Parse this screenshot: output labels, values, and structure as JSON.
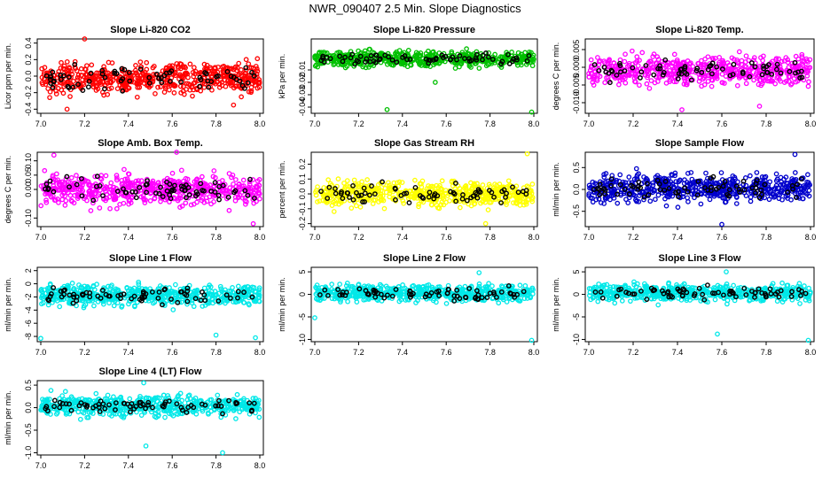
{
  "figure_title": "NWR_090407  2.5 Min. Slope Diagnostics",
  "chart_data": [
    {
      "type": "scatter",
      "title": "Slope Li-820 CO2",
      "ylabel": "Licor ppm per min.",
      "xlim": [
        7.0,
        8.0
      ],
      "ylim": [
        -0.45,
        0.45
      ],
      "xticks": [
        "7.0",
        "7.2",
        "7.4",
        "7.6",
        "7.8",
        "8.0"
      ],
      "yticks": [
        {
          "v": -0.4,
          "l": "-0.4"
        },
        {
          "v": -0.2,
          "l": "-0.2"
        },
        {
          "v": 0.0,
          "l": "0.0"
        },
        {
          "v": 0.2,
          "l": "0.2"
        },
        {
          "v": 0.4,
          "l": "0.4"
        }
      ],
      "color": "#ff0000",
      "highlight_color": "#000000",
      "band": [
        -0.35,
        0.3
      ],
      "outliers": [
        [
          7.2,
          0.45
        ],
        [
          7.12,
          -0.4
        ],
        [
          7.88,
          -0.35
        ]
      ],
      "seed": 1
    },
    {
      "type": "scatter",
      "title": "Slope Li-820 Pressure",
      "ylabel": "kPa per min.",
      "xlim": [
        7.0,
        8.0
      ],
      "ylim": [
        -0.045,
        0.015
      ],
      "xticks": [
        "7.0",
        "7.2",
        "7.4",
        "7.6",
        "7.8",
        "8.0"
      ],
      "yticks": [
        {
          "v": -0.04,
          "l": "-0.04"
        },
        {
          "v": -0.03,
          "l": "-0.03"
        },
        {
          "v": -0.02,
          "l": "-0.02"
        },
        {
          "v": -0.01,
          "l": "-0.01"
        }
      ],
      "color": "#00c000",
      "highlight_color": "#000000",
      "band": [
        -0.012,
        0.01
      ],
      "outliers": [
        [
          7.33,
          -0.042
        ],
        [
          7.55,
          -0.02
        ],
        [
          7.99,
          -0.044
        ]
      ],
      "seed": 2
    },
    {
      "type": "scatter",
      "title": "Slope Li-820 Temp.",
      "ylabel": "degrees C per min.",
      "xlim": [
        7.0,
        8.0
      ],
      "ylim": [
        -0.013,
        0.008
      ],
      "xticks": [
        "7.0",
        "7.2",
        "7.4",
        "7.6",
        "7.8",
        "8.0"
      ],
      "yticks": [
        {
          "v": -0.01,
          "l": "-0.010"
        },
        {
          "v": -0.005,
          "l": "-0.005"
        },
        {
          "v": 0.0,
          "l": "0.000"
        },
        {
          "v": 0.005,
          "l": "0.005"
        }
      ],
      "color": "#ff00ff",
      "highlight_color": "#000000",
      "band": [
        -0.008,
        0.006
      ],
      "outliers": [
        [
          7.42,
          -0.012
        ],
        [
          7.77,
          -0.011
        ]
      ],
      "seed": 3
    },
    {
      "type": "scatter",
      "title": "Slope Amb. Box Temp.",
      "ylabel": "degrees C per min.",
      "xlim": [
        7.0,
        8.0
      ],
      "ylim": [
        -0.13,
        0.13
      ],
      "xticks": [
        "7.0",
        "7.2",
        "7.4",
        "7.6",
        "7.8",
        "8.0"
      ],
      "yticks": [
        {
          "v": -0.1,
          "l": "-0.10"
        },
        {
          "v": 0.0,
          "l": "0.00"
        },
        {
          "v": 0.05,
          "l": "0.05"
        },
        {
          "v": 0.1,
          "l": "0.10"
        }
      ],
      "color": "#ff00ff",
      "highlight_color": "#000000",
      "band": [
        -0.09,
        0.09
      ],
      "outliers": [
        [
          7.06,
          0.12
        ],
        [
          7.62,
          0.13
        ],
        [
          7.97,
          -0.12
        ]
      ],
      "seed": 4
    },
    {
      "type": "scatter",
      "title": "Slope Gas Stream RH",
      "ylabel": "percent per min.",
      "xlim": [
        7.0,
        8.0
      ],
      "ylim": [
        -0.22,
        0.28
      ],
      "xticks": [
        "7.0",
        "7.2",
        "7.4",
        "7.6",
        "7.8",
        "8.0"
      ],
      "yticks": [
        {
          "v": -0.2,
          "l": "-0.2"
        },
        {
          "v": -0.1,
          "l": "-0.1"
        },
        {
          "v": 0.0,
          "l": "0.0"
        },
        {
          "v": 0.1,
          "l": "0.1"
        },
        {
          "v": 0.2,
          "l": "0.2"
        }
      ],
      "color": "#ffff00",
      "highlight_color": "#000000",
      "band": [
        -0.15,
        0.15
      ],
      "outliers": [
        [
          7.97,
          0.27
        ],
        [
          7.78,
          -0.2
        ]
      ],
      "seed": 5
    },
    {
      "type": "scatter",
      "title": "Slope Sample Flow",
      "ylabel": "ml/min per min.",
      "xlim": [
        7.0,
        8.0
      ],
      "ylim": [
        -0.85,
        0.85
      ],
      "xticks": [
        "7.0",
        "7.2",
        "7.4",
        "7.6",
        "7.8",
        "8.0"
      ],
      "yticks": [
        {
          "v": -0.5,
          "l": "-0.5"
        },
        {
          "v": 0.0,
          "l": "0.0"
        },
        {
          "v": 0.5,
          "l": "0.5"
        }
      ],
      "color": "#0000cc",
      "highlight_color": "#000000",
      "band": [
        -0.55,
        0.6
      ],
      "outliers": [
        [
          7.93,
          0.8
        ],
        [
          7.6,
          -0.8
        ]
      ],
      "seed": 6
    },
    {
      "type": "scatter",
      "title": "Slope Line 1 Flow",
      "ylabel": "ml/min per min.",
      "xlim": [
        7.0,
        8.0
      ],
      "ylim": [
        -8.8,
        2.5
      ],
      "xticks": [
        "7.0",
        "7.2",
        "7.4",
        "7.6",
        "7.8",
        "8.0"
      ],
      "yticks": [
        {
          "v": -8,
          "l": "-8"
        },
        {
          "v": -6,
          "l": "-6"
        },
        {
          "v": -4,
          "l": "-4"
        },
        {
          "v": -2,
          "l": "-2"
        },
        {
          "v": 0,
          "l": "0"
        },
        {
          "v": 2,
          "l": "2"
        }
      ],
      "color": "#00e8e8",
      "highlight_color": "#000000",
      "band": [
        -4.5,
        1.0
      ],
      "outliers": [
        [
          7.0,
          -8.3
        ],
        [
          7.8,
          -7.8
        ],
        [
          7.98,
          -8.2
        ]
      ],
      "seed": 7
    },
    {
      "type": "scatter",
      "title": "Slope Line 2 Flow",
      "ylabel": "ml/min per min.",
      "xlim": [
        7.0,
        8.0
      ],
      "ylim": [
        -10.5,
        6
      ],
      "xticks": [
        "7.0",
        "7.2",
        "7.4",
        "7.6",
        "7.8",
        "8.0"
      ],
      "yticks": [
        {
          "v": -10,
          "l": "-10"
        },
        {
          "v": -5,
          "l": "-5"
        },
        {
          "v": 0,
          "l": "0"
        },
        {
          "v": 5,
          "l": "5"
        }
      ],
      "color": "#00e8e8",
      "highlight_color": "#000000",
      "band": [
        -3,
        3.5
      ],
      "outliers": [
        [
          7.0,
          -5.2
        ],
        [
          7.99,
          -10.2
        ],
        [
          7.75,
          4.8
        ]
      ],
      "seed": 8
    },
    {
      "type": "scatter",
      "title": "Slope Line 3 Flow",
      "ylabel": "ml/min per min.",
      "xlim": [
        7.0,
        8.0
      ],
      "ylim": [
        -10.5,
        6
      ],
      "xticks": [
        "7.0",
        "7.2",
        "7.4",
        "7.6",
        "7.8",
        "8.0"
      ],
      "yticks": [
        {
          "v": -10,
          "l": "-10"
        },
        {
          "v": -5,
          "l": "-5"
        },
        {
          "v": 0,
          "l": "0"
        },
        {
          "v": 5,
          "l": "5"
        }
      ],
      "color": "#00e8e8",
      "highlight_color": "#000000",
      "band": [
        -3,
        3.5
      ],
      "outliers": [
        [
          7.58,
          -8.8
        ],
        [
          7.99,
          -10.2
        ],
        [
          7.62,
          5
        ]
      ],
      "seed": 9
    },
    {
      "type": "scatter",
      "title": "Slope Line 4 (LT) Flow",
      "ylabel": "ml/min per min.",
      "xlim": [
        7.0,
        8.0
      ],
      "ylim": [
        -1.05,
        0.6
      ],
      "xticks": [
        "7.0",
        "7.2",
        "7.4",
        "7.6",
        "7.8",
        "8.0"
      ],
      "yticks": [
        {
          "v": -1.0,
          "l": "-1.0"
        },
        {
          "v": -0.5,
          "l": "-0.5"
        },
        {
          "v": 0.0,
          "l": "0.0"
        },
        {
          "v": 0.5,
          "l": "0.5"
        }
      ],
      "color": "#00e8e8",
      "highlight_color": "#000000",
      "band": [
        -0.35,
        0.45
      ],
      "outliers": [
        [
          7.47,
          0.55
        ],
        [
          7.48,
          -0.85
        ],
        [
          7.83,
          -1.0
        ]
      ],
      "seed": 10
    }
  ]
}
